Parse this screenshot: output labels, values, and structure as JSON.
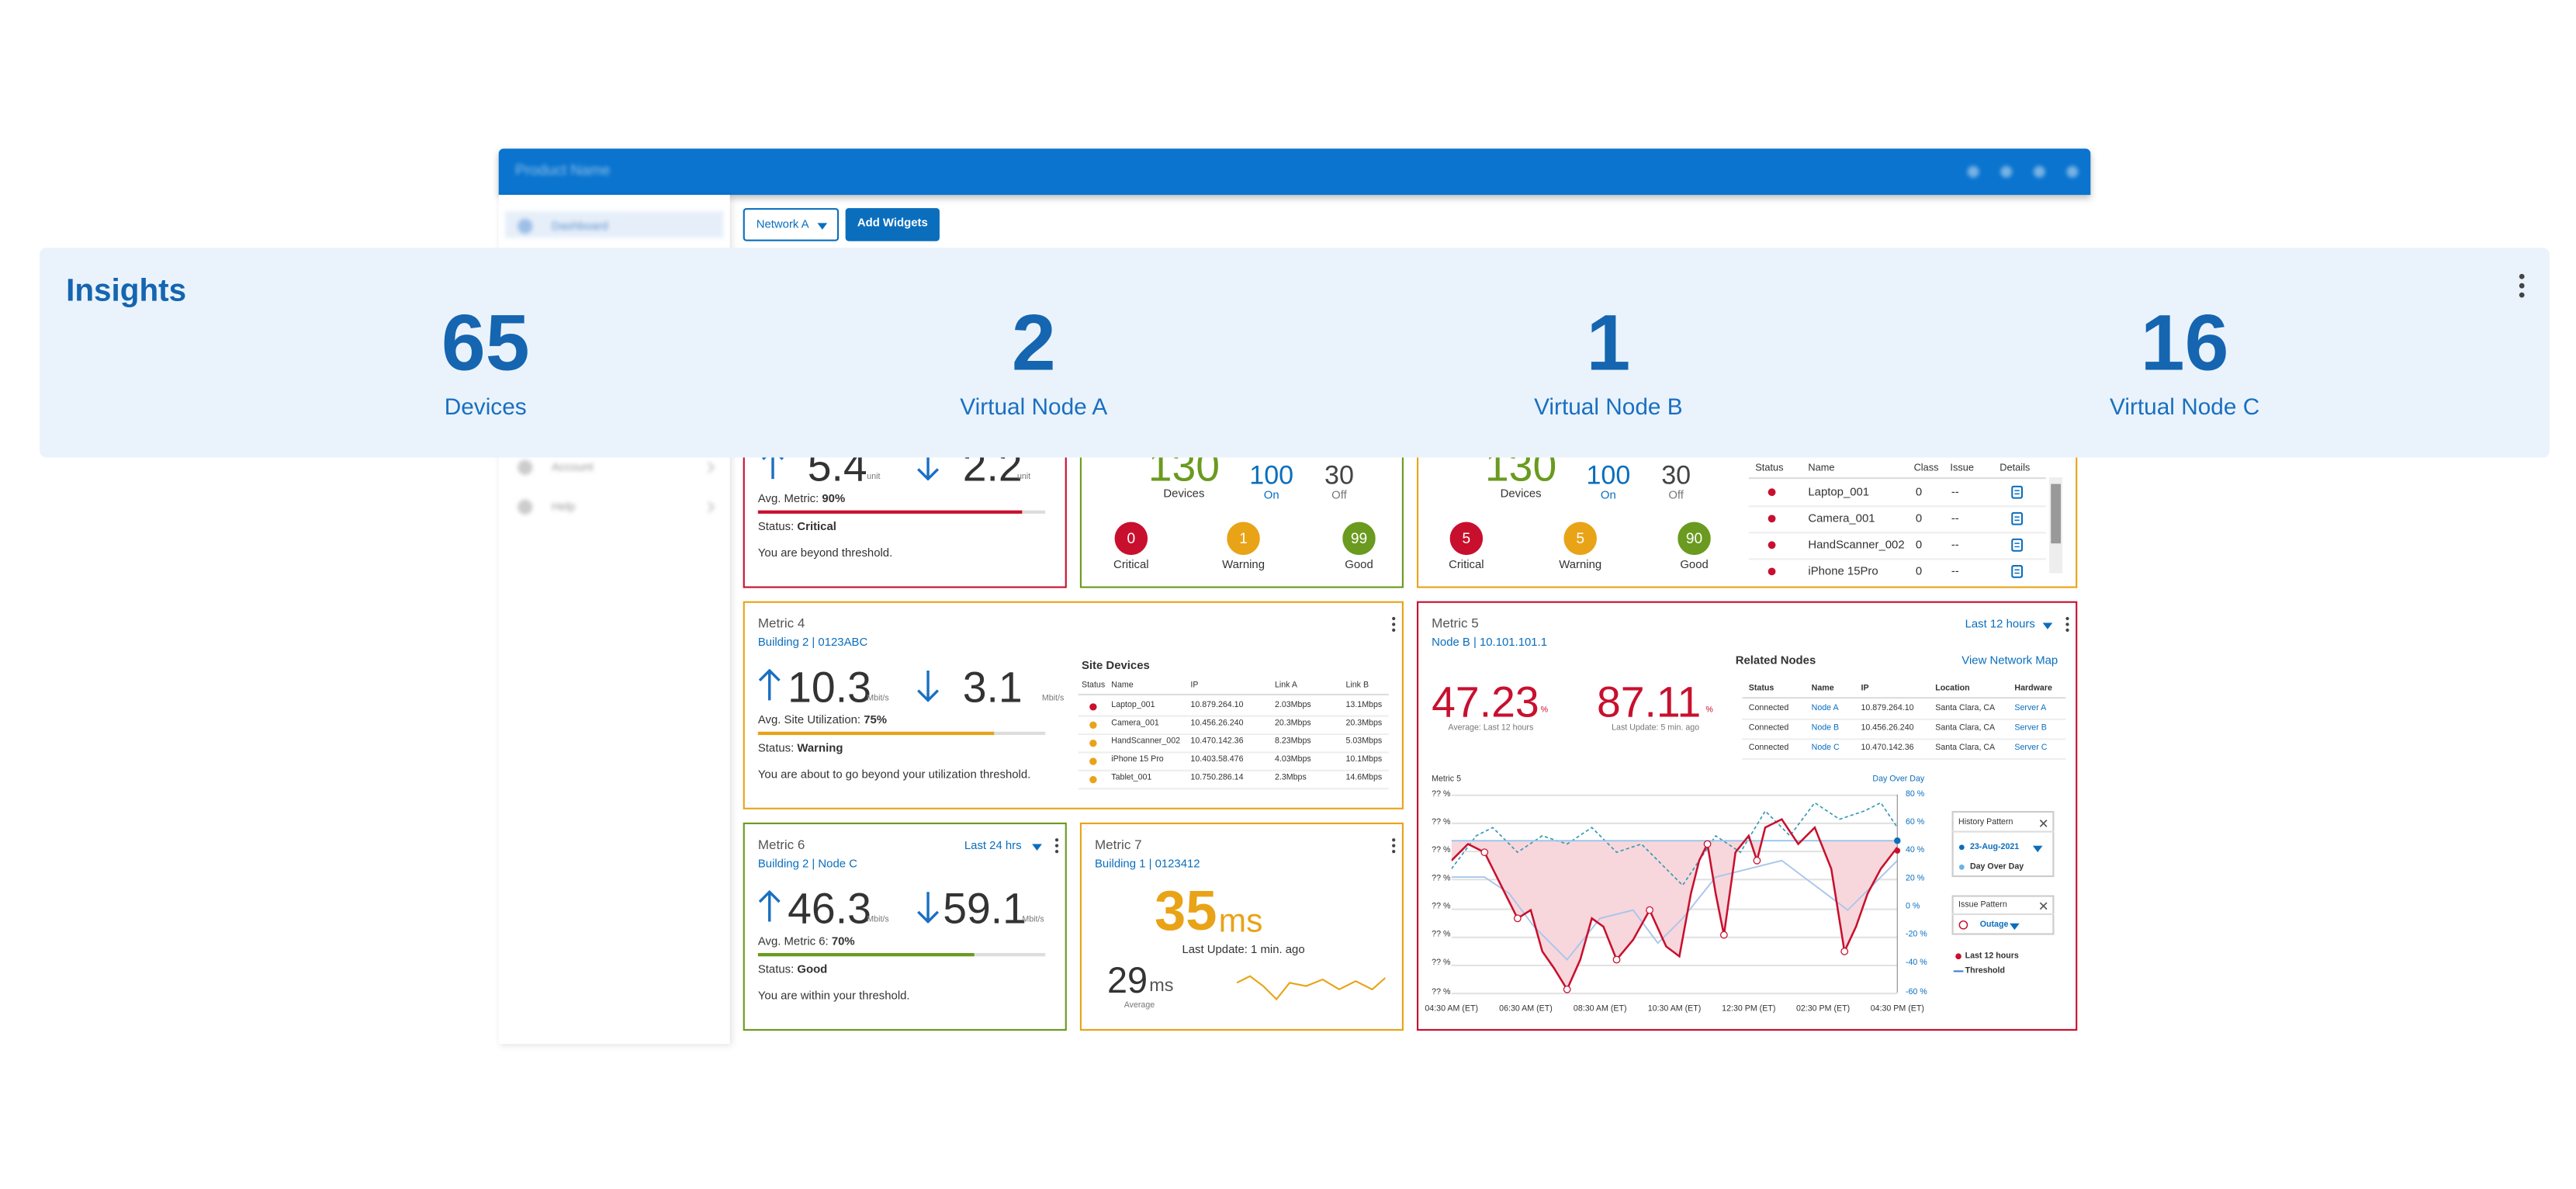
{
  "app_bar": {
    "title": "Product Name"
  },
  "sidebar": {
    "items": [
      "Dashboard",
      "Account",
      "Help"
    ]
  },
  "toolbar": {
    "network": "Network A",
    "add_widgets": "Add Widgets"
  },
  "insights": {
    "title": "Insights",
    "stats": [
      {
        "value": 65,
        "label": "Devices"
      },
      {
        "value": 2,
        "label": "Virtual Node A"
      },
      {
        "value": 1,
        "label": "Virtual Node B"
      },
      {
        "value": 16,
        "label": "Virtual Node C"
      }
    ]
  },
  "metric_1": {
    "up": "5.4",
    "up_unit": "unit",
    "down": "2.2",
    "down_unit": "unit",
    "avg_label": "Avg. Metric:",
    "avg_value": "90%",
    "status_label": "Status:",
    "status": "Critical",
    "message": "You are beyond threshold."
  },
  "metric_2": {
    "total": 130,
    "total_label": "Devices",
    "on": 100,
    "on_label": "On",
    "off": 30,
    "off_label": "Off",
    "levels": [
      {
        "count": 0,
        "label": "Critical"
      },
      {
        "count": 1,
        "label": "Warning"
      },
      {
        "count": 99,
        "label": "Good"
      }
    ]
  },
  "metric_3": {
    "total": 130,
    "total_label": "Devices",
    "on": 100,
    "on_label": "On",
    "off": 30,
    "off_label": "Off",
    "levels": [
      {
        "count": 5,
        "label": "Critical"
      },
      {
        "count": 5,
        "label": "Warning"
      },
      {
        "count": 90,
        "label": "Good"
      }
    ],
    "table": {
      "columns": [
        "Status",
        "Name",
        "Class",
        "Issue",
        "Details"
      ],
      "rows": [
        [
          "Laptop_001",
          "0",
          "--"
        ],
        [
          "Camera_001",
          "0",
          "--"
        ],
        [
          "HandScanner_002",
          "0",
          "--"
        ],
        [
          "iPhone 15Pro",
          "0",
          "--"
        ]
      ]
    }
  },
  "metric_4": {
    "title": "Metric 4",
    "subtitle": "Building 2 | 0123ABC",
    "up": "10.3",
    "up_unit": "Mbit/s",
    "down": "3.1",
    "down_unit": "Mbit/s",
    "avg_label": "Avg. Site Utilization:",
    "avg_value": "75%",
    "status_label": "Status:",
    "status": "Warning",
    "message": "You are about to go beyond your utilization threshold.",
    "table": {
      "title": "Site Devices",
      "columns": [
        "Status",
        "Name",
        "IP",
        "Link A",
        "Link B"
      ],
      "rows": [
        [
          "Laptop_001",
          "10.879.264.10",
          "2.03Mbps",
          "13.1Mbps"
        ],
        [
          "Camera_001",
          "10.456.26.240",
          "20.3Mbps",
          "20.3Mbps"
        ],
        [
          "HandScanner_002",
          "10.470.142.36",
          "8.23Mbps",
          "5.03Mbps"
        ],
        [
          "iPhone 15 Pro",
          "10.403.58.476",
          "4.03Mbps",
          "10.1Mbps"
        ],
        [
          "Tablet_001",
          "10.750.286.14",
          "2.3Mbps",
          "14.6Mbps"
        ]
      ]
    }
  },
  "metric_5": {
    "title": "Metric 5",
    "subtitle": "Node B | 10.101.101.1",
    "range": "Last 12 hours",
    "avg": "47.23",
    "avg_unit": "%",
    "avg_caption": "Average: Last 12 hours",
    "last": "87.11",
    "last_unit": "%",
    "last_caption": "Last Update: 5 min. ago",
    "nodes": {
      "title": "Related Nodes",
      "link": "View Network Map",
      "columns": [
        "Status",
        "Name",
        "IP",
        "Location",
        "Hardware"
      ],
      "rows": [
        [
          "Connected",
          "Node A",
          "10.879.264.10",
          "Santa Clara, CA",
          "Server A"
        ],
        [
          "Connected",
          "Node B",
          "10.456.26.240",
          "Santa Clara, CA",
          "Server B"
        ],
        [
          "Connected",
          "Node C",
          "10.470.142.36",
          "Santa Clara, CA",
          "Server C"
        ]
      ]
    },
    "chart": {
      "title": "Metric 5",
      "compare": "Day Over Day",
      "left_ticks": [
        "?? %",
        "?? %",
        "?? %",
        "?? %",
        "?? %",
        "?? %",
        "?? %",
        "?? %"
      ],
      "right_ticks": [
        "80 %",
        "60 %",
        "40 %",
        "20 %",
        "0 %",
        "-20 %",
        "-40 %",
        "-60 %"
      ],
      "x_labels": [
        "04:30 AM (ET)",
        "06:30 AM (ET)",
        "08:30 AM (ET)",
        "10:30 AM (ET)",
        "12:30 PM (ET)",
        "02:30 PM (ET)",
        "04:30 PM (ET)"
      ]
    },
    "history": {
      "title": "History Pattern",
      "date": "23-Aug-2021",
      "mode": "Day Over Day"
    },
    "issue": {
      "title": "Issue Pattern",
      "value": "Outage"
    },
    "legend": [
      "Last 12 hours",
      "Threshold"
    ]
  },
  "metric_6": {
    "title": "Metric 6",
    "range": "Last 24 hrs",
    "subtitle": "Building 2 | Node C",
    "up": "46.3",
    "up_unit": "Mbit/s",
    "down": "59.1",
    "down_unit": "Mbit/s",
    "avg_label": "Avg. Metric 6:",
    "avg_value": "70%",
    "status_label": "Status:",
    "status": "Good",
    "message": "You are within your threshold."
  },
  "metric_7": {
    "title": "Metric 7",
    "subtitle": "Building 1 | 0123412",
    "value": "35",
    "unit": "ms",
    "caption": "Last Update: 1 min. ago",
    "avg": "29",
    "avg_unit": "ms",
    "avg_caption": "Average"
  }
}
